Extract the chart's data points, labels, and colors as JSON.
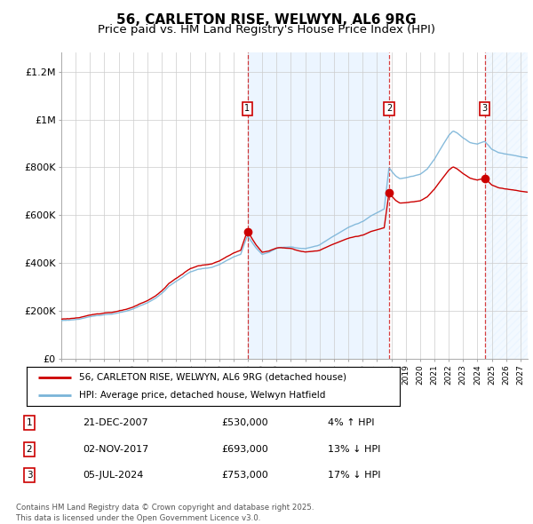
{
  "title": "56, CARLETON RISE, WELWYN, AL6 9RG",
  "subtitle": "Price paid vs. HM Land Registry's House Price Index (HPI)",
  "title_fontsize": 11,
  "subtitle_fontsize": 9.5,
  "ylabel_ticks": [
    "£0",
    "£200K",
    "£400K",
    "£600K",
    "£800K",
    "£1M",
    "£1.2M"
  ],
  "ytick_vals": [
    0,
    200000,
    400000,
    600000,
    800000,
    1000000,
    1200000
  ],
  "ylim": [
    0,
    1280000
  ],
  "xlim_start": 1995.0,
  "xlim_end": 2027.5,
  "hpi_color": "#7ab4d8",
  "price_color": "#cc0000",
  "transaction1_date": 2007.97,
  "transaction1_price": 530000,
  "transaction2_date": 2017.84,
  "transaction2_price": 693000,
  "transaction3_date": 2024.51,
  "transaction3_price": 753000,
  "legend_label1": "56, CARLETON RISE, WELWYN, AL6 9RG (detached house)",
  "legend_label2": "HPI: Average price, detached house, Welwyn Hatfield",
  "table_rows": [
    {
      "num": "1",
      "date": "21-DEC-2007",
      "price": "£530,000",
      "change": "4% ↑ HPI"
    },
    {
      "num": "2",
      "date": "02-NOV-2017",
      "price": "£693,000",
      "change": "13% ↓ HPI"
    },
    {
      "num": "3",
      "date": "05-JUL-2024",
      "price": "£753,000",
      "change": "17% ↓ HPI"
    }
  ],
  "footer": "Contains HM Land Registry data © Crown copyright and database right 2025.\nThis data is licensed under the Open Government Licence v3.0.",
  "background_color": "#ffffff",
  "plot_bg_color": "#ffffff",
  "grid_color": "#cccccc",
  "shade_color": "#ddeeff",
  "hatch_color": "#ccddee"
}
